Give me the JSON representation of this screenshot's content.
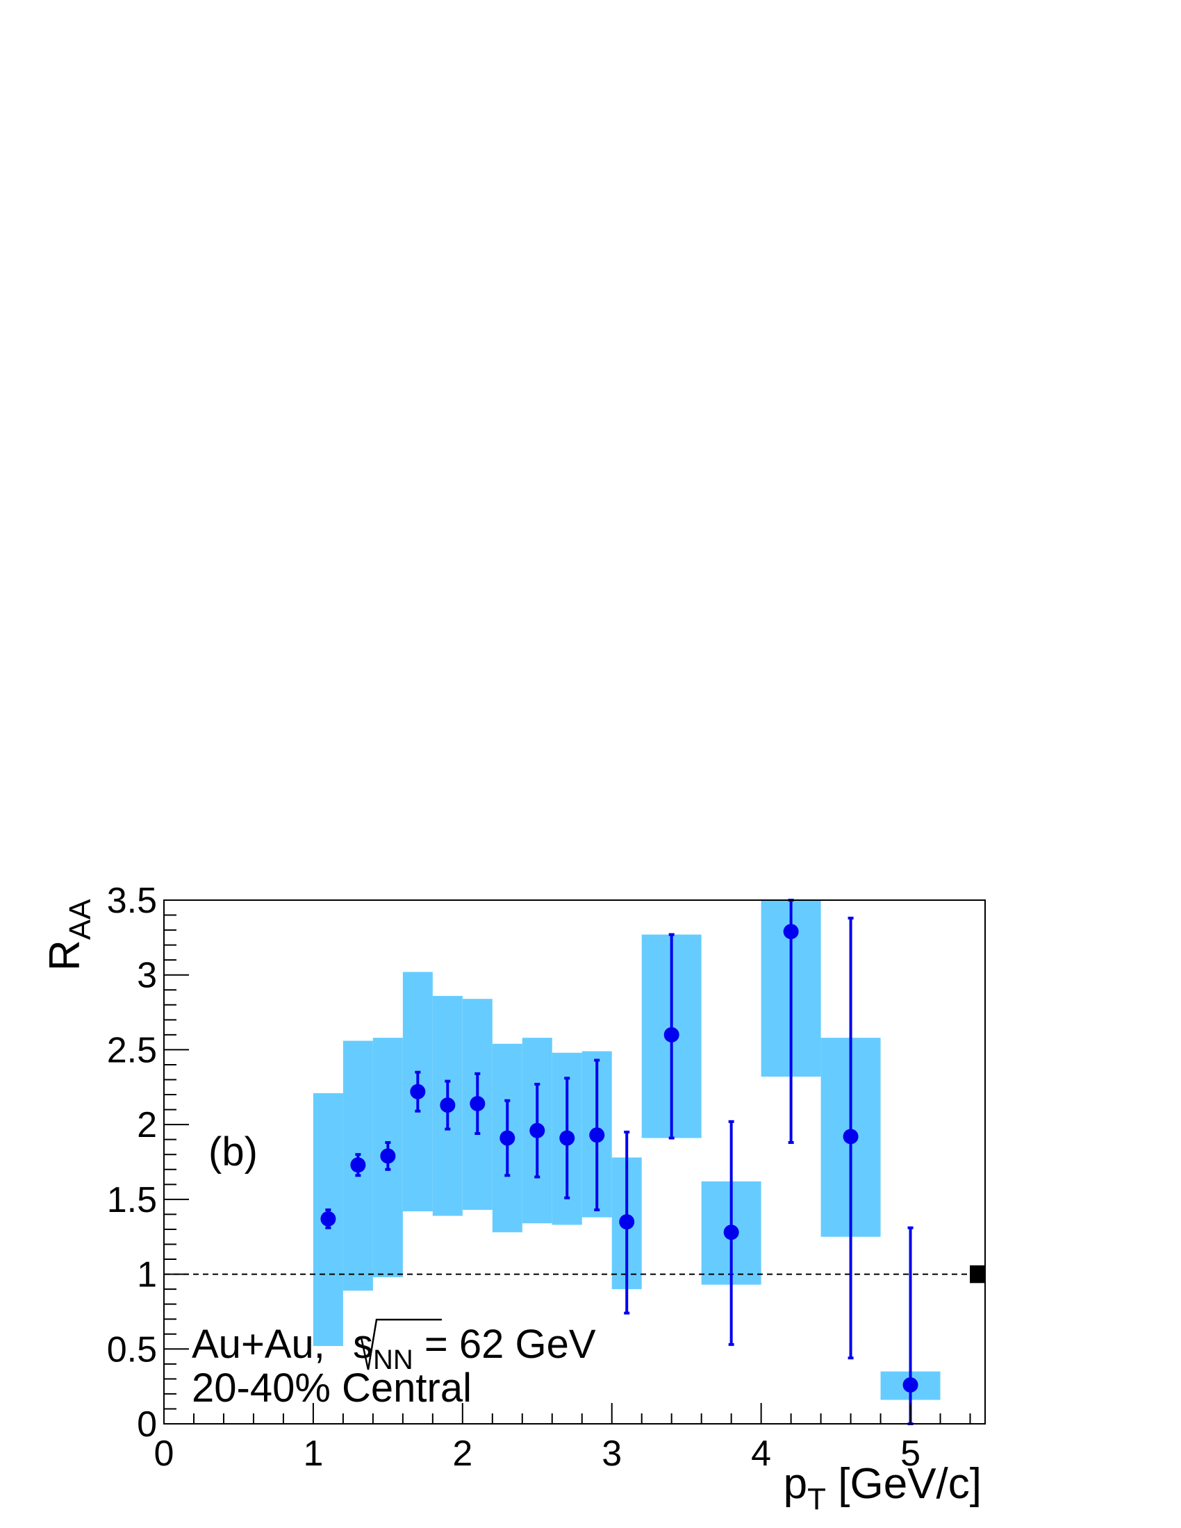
{
  "chart_data": {
    "type": "scatter",
    "panel_label": "(b)",
    "xlabel": {
      "main": "p",
      "sub": "T",
      "rest": " [GeV/c]"
    },
    "ylabel": {
      "main": "R",
      "sub": "AA"
    },
    "xlim": [
      0,
      5.5
    ],
    "ylim": [
      0,
      3.5
    ],
    "x_ticks": [
      "0",
      "1",
      "2",
      "3",
      "4",
      "5"
    ],
    "y_ticks": [
      "0",
      "0.5",
      "1",
      "1.5",
      "2",
      "2.5",
      "3",
      "3.5"
    ],
    "annotation": {
      "system": "Au+Au, ",
      "sqrt_var": "s",
      "sqrt_sub": "NN",
      "energy": " = 62 GeV",
      "centrality": "20-40% Central"
    },
    "reference_line": 1,
    "norm_uncertainty": [
      0.95,
      1.05
    ],
    "colors": {
      "marker": "#0000ee",
      "syst_box": "#66ccff"
    },
    "series": [
      {
        "points": [
          {
            "x": 1.1,
            "y": 1.37,
            "stat": [
              1.31,
              1.43
            ],
            "syst_x": [
              1.0,
              1.2
            ],
            "syst": [
              0.52,
              2.21
            ]
          },
          {
            "x": 1.3,
            "y": 1.73,
            "stat": [
              1.66,
              1.8
            ],
            "syst_x": [
              1.2,
              1.4
            ],
            "syst": [
              0.89,
              2.56
            ]
          },
          {
            "x": 1.5,
            "y": 1.79,
            "stat": [
              1.7,
              1.88
            ],
            "syst_x": [
              1.4,
              1.6
            ],
            "syst": [
              0.98,
              2.58
            ]
          },
          {
            "x": 1.7,
            "y": 2.22,
            "stat": [
              2.09,
              2.35
            ],
            "syst_x": [
              1.6,
              1.8
            ],
            "syst": [
              1.42,
              3.02
            ]
          },
          {
            "x": 1.9,
            "y": 2.13,
            "stat": [
              1.97,
              2.29
            ],
            "syst_x": [
              1.8,
              2.0
            ],
            "syst": [
              1.39,
              2.86
            ]
          },
          {
            "x": 2.1,
            "y": 2.14,
            "stat": [
              1.94,
              2.34
            ],
            "syst_x": [
              2.0,
              2.2
            ],
            "syst": [
              1.43,
              2.84
            ]
          },
          {
            "x": 2.3,
            "y": 1.91,
            "stat": [
              1.66,
              2.16
            ],
            "syst_x": [
              2.2,
              2.4
            ],
            "syst": [
              1.28,
              2.54
            ]
          },
          {
            "x": 2.5,
            "y": 1.96,
            "stat": [
              1.65,
              2.27
            ],
            "syst_x": [
              2.4,
              2.6
            ],
            "syst": [
              1.34,
              2.58
            ]
          },
          {
            "x": 2.7,
            "y": 1.91,
            "stat": [
              1.51,
              2.31
            ],
            "syst_x": [
              2.6,
              2.8
            ],
            "syst": [
              1.33,
              2.48
            ]
          },
          {
            "x": 2.9,
            "y": 1.93,
            "stat": [
              1.43,
              2.43
            ],
            "syst_x": [
              2.8,
              3.0
            ],
            "syst": [
              1.38,
              2.49
            ]
          },
          {
            "x": 3.1,
            "y": 1.35,
            "stat": [
              0.74,
              1.95
            ],
            "syst_x": [
              3.0,
              3.2
            ],
            "syst": [
              0.9,
              1.78
            ]
          },
          {
            "x": 3.4,
            "y": 2.6,
            "stat": [
              1.91,
              3.27
            ],
            "syst_x": [
              3.2,
              3.6
            ],
            "syst": [
              1.91,
              3.27
            ]
          },
          {
            "x": 3.8,
            "y": 1.28,
            "stat": [
              0.53,
              2.02
            ],
            "syst_x": [
              3.6,
              4.0
            ],
            "syst": [
              0.93,
              1.62
            ]
          },
          {
            "x": 4.2,
            "y": 3.29,
            "stat": [
              1.88,
              3.5
            ],
            "syst_x": [
              4.0,
              4.4
            ],
            "syst": [
              2.32,
              3.5
            ]
          },
          {
            "x": 4.6,
            "y": 1.92,
            "stat": [
              0.44,
              3.38
            ],
            "syst_x": [
              4.4,
              4.8
            ],
            "syst": [
              1.25,
              2.58
            ]
          },
          {
            "x": 5.0,
            "y": 0.26,
            "stat": [
              0.0,
              1.31
            ],
            "syst_x": [
              4.8,
              5.2
            ],
            "syst": [
              0.16,
              0.35
            ]
          }
        ]
      }
    ]
  }
}
